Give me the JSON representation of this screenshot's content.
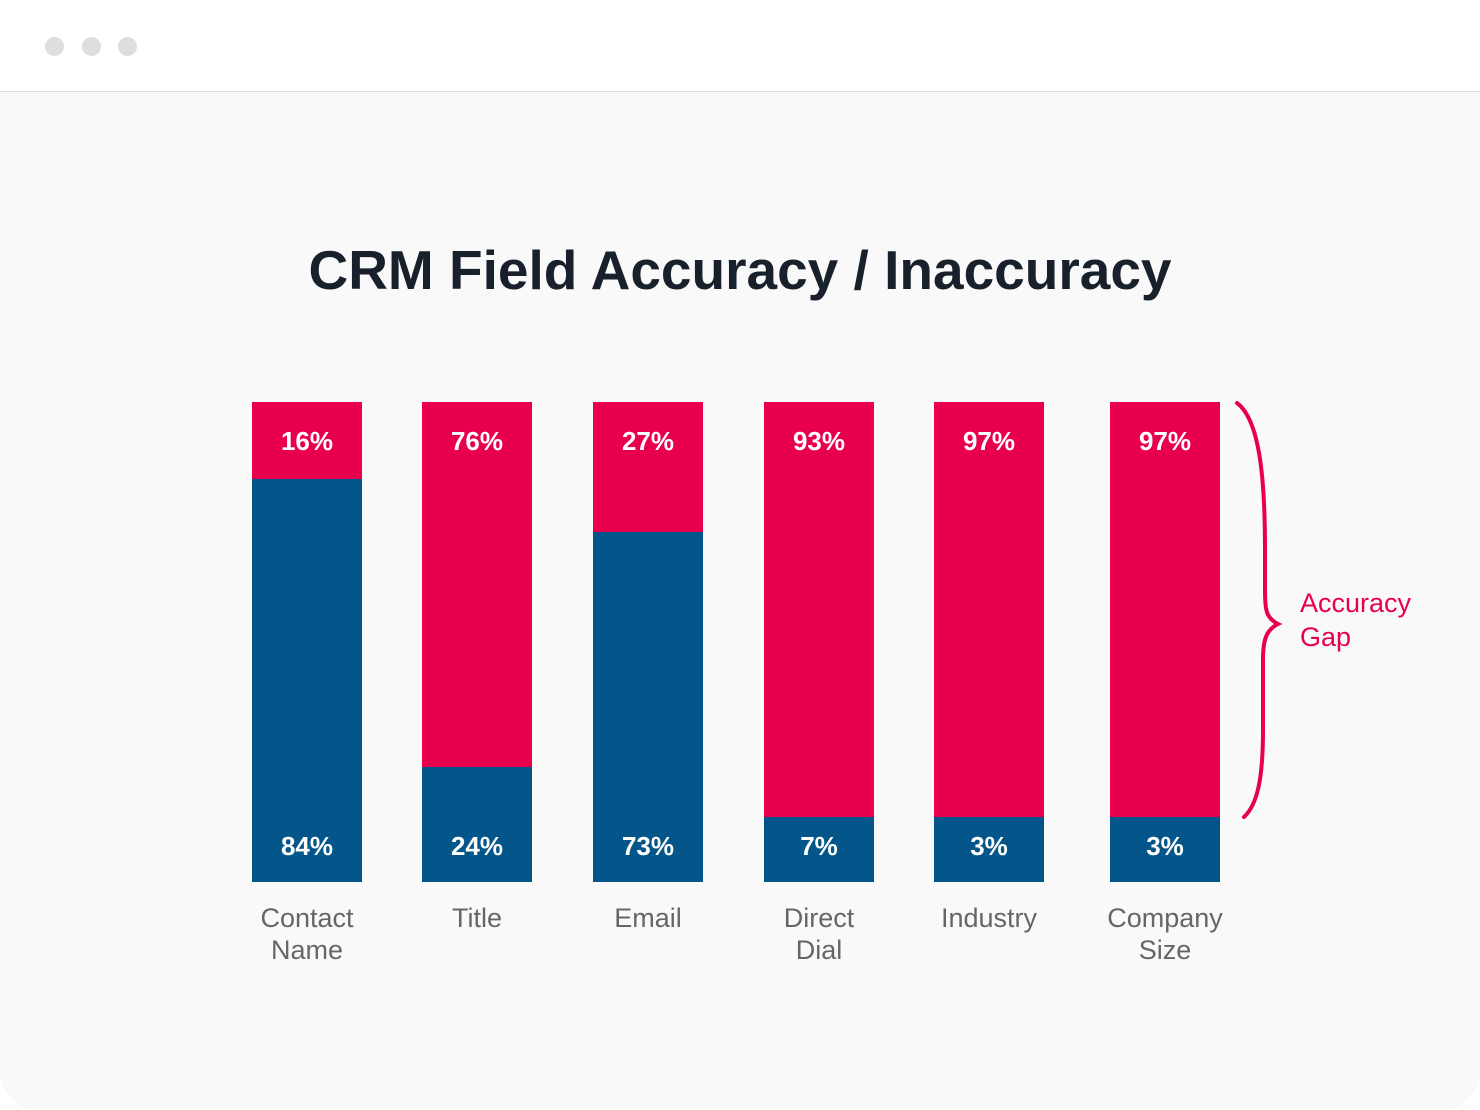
{
  "window": {
    "controls": [
      "close",
      "minimize",
      "maximize"
    ]
  },
  "chart_data": {
    "type": "bar",
    "stacked": true,
    "title": "CRM Field Accuracy / Inaccuracy",
    "categories": [
      [
        "Contact",
        "Name"
      ],
      [
        "Title"
      ],
      [
        "Email"
      ],
      [
        "Direct",
        "Dial"
      ],
      [
        "Industry"
      ],
      [
        "Company",
        "Size"
      ]
    ],
    "series": [
      {
        "values": [
          84,
          24,
          73,
          7,
          3,
          3
        ],
        "labels": [
          "84%",
          "24%",
          "73%",
          "7%",
          "3%",
          "3%"
        ],
        "color": "#045589"
      },
      {
        "values": [
          16,
          76,
          27,
          93,
          97,
          97
        ],
        "labels": [
          "16%",
          "76%",
          "27%",
          "93%",
          "97%",
          "97%"
        ],
        "color": "#e8004c"
      }
    ],
    "annotation": {
      "lines": [
        "Accuracy",
        "Gap"
      ],
      "color": "#e8004c"
    },
    "ylim": [
      0,
      100
    ],
    "grid": false
  }
}
